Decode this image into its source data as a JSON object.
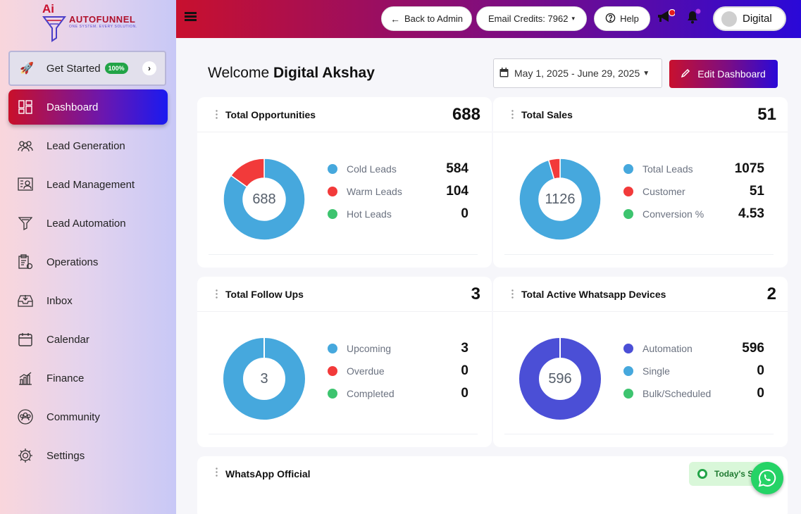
{
  "brand": {
    "name": "AUTOFUNNEL",
    "tagline": "ONE SYSTEM. EVERY SOLUTION.",
    "logo_mark": "Ai"
  },
  "sidebar": {
    "get_started": {
      "label": "Get Started",
      "badge": "100%"
    },
    "items": [
      {
        "label": "Dashboard",
        "icon": "dashboard-icon",
        "active": true
      },
      {
        "label": "Lead Generation",
        "icon": "users-icon"
      },
      {
        "label": "Lead Management",
        "icon": "contact-card-icon"
      },
      {
        "label": "Lead Automation",
        "icon": "funnel-icon"
      },
      {
        "label": "Operations",
        "icon": "clipboard-gear-icon"
      },
      {
        "label": "Inbox",
        "icon": "inbox-icon"
      },
      {
        "label": "Calendar",
        "icon": "calendar-icon"
      },
      {
        "label": "Finance",
        "icon": "bar-chart-icon"
      },
      {
        "label": "Community",
        "icon": "community-icon"
      },
      {
        "label": "Settings",
        "icon": "gear-icon"
      }
    ]
  },
  "topbar": {
    "back_label": "Back to Admin",
    "email_credits_label": "Email Credits: 7962",
    "help_label": "Help",
    "user_name": "Digital"
  },
  "main": {
    "welcome_prefix": "Welcome",
    "welcome_name": "Digital Akshay",
    "date_range": "May 1, 2025 - June 29, 2025",
    "edit_label": "Edit Dashboard"
  },
  "cards": [
    {
      "title": "Total Opportunities",
      "total": "688",
      "center": "688",
      "legend": [
        {
          "label": "Cold Leads",
          "value": "584",
          "color": "#46a8dd"
        },
        {
          "label": "Warm Leads",
          "value": "104",
          "color": "#f23a3a"
        },
        {
          "label": "Hot Leads",
          "value": "0",
          "color": "#3dc46f"
        }
      ],
      "slices": [
        584,
        104,
        0
      ]
    },
    {
      "title": "Total Sales",
      "total": "51",
      "center": "1126",
      "legend": [
        {
          "label": "Total Leads",
          "value": "1075",
          "color": "#46a8dd"
        },
        {
          "label": "Customer",
          "value": "51",
          "color": "#f23a3a"
        },
        {
          "label": "Conversion %",
          "value": "4.53",
          "color": "#3dc46f"
        }
      ],
      "slices": [
        1075,
        51,
        0
      ]
    },
    {
      "title": "Total Follow Ups",
      "total": "3",
      "center": "3",
      "legend": [
        {
          "label": "Upcoming",
          "value": "3",
          "color": "#46a8dd"
        },
        {
          "label": "Overdue",
          "value": "0",
          "color": "#f23a3a"
        },
        {
          "label": "Completed",
          "value": "0",
          "color": "#3dc46f"
        }
      ],
      "slices": [
        3,
        0,
        0
      ]
    },
    {
      "title": "Total Active Whatsapp Devices",
      "total": "2",
      "center": "596",
      "legend": [
        {
          "label": "Automation",
          "value": "596",
          "color": "#4b4fd6"
        },
        {
          "label": "Single",
          "value": "0",
          "color": "#46a8dd"
        },
        {
          "label": "Bulk/Scheduled",
          "value": "0",
          "color": "#3dc46f"
        }
      ],
      "slices": [
        596,
        0,
        0
      ]
    }
  ],
  "whatsapp_official": {
    "title": "WhatsApp Official",
    "today_label": "Today's S"
  }
}
